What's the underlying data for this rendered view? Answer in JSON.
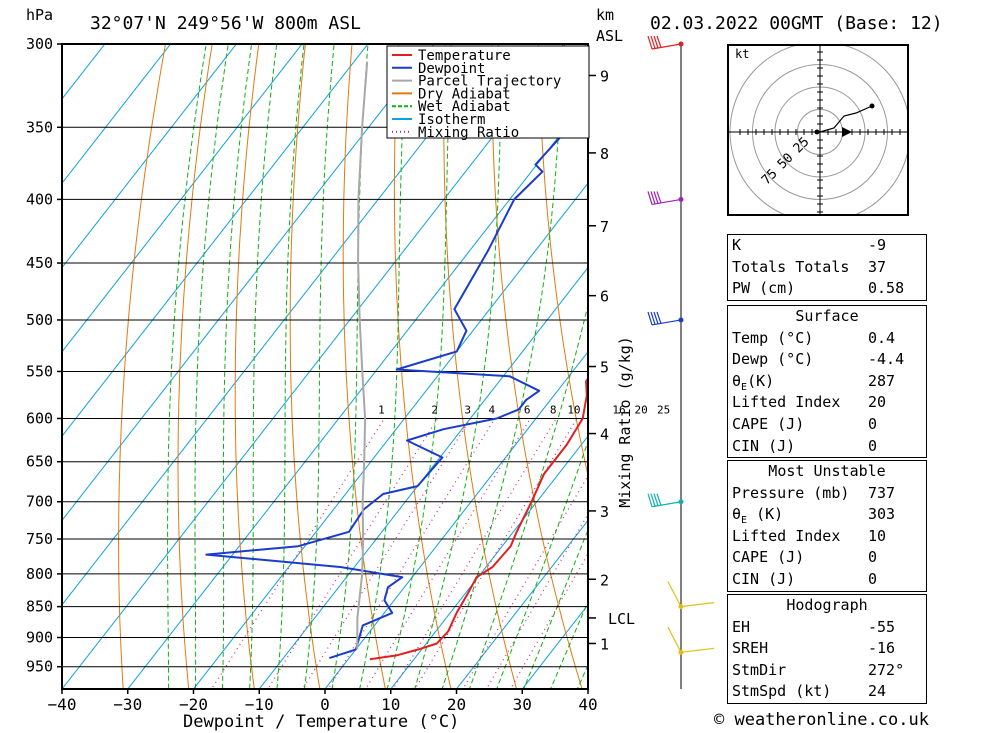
{
  "header": {
    "location": "32°07'N  249°56'W  800m  ASL",
    "datetime": "02.03.2022  00GMT  (Base: 12)",
    "hpa_label": "hPa",
    "km_label": "km",
    "asl_label": "ASL"
  },
  "axes": {
    "xlabel": "Dewpoint / Temperature (°C)",
    "mixing_ratio_label": "Mixing Ratio (g/kg)",
    "x_ticks": [
      "−40",
      "−30",
      "−20",
      "−10",
      "0",
      "10",
      "20",
      "30",
      "40"
    ],
    "x_tick_values": [
      -40,
      -30,
      -20,
      -10,
      0,
      10,
      20,
      30,
      40
    ],
    "pressure_levels": [
      300,
      350,
      400,
      450,
      500,
      550,
      600,
      650,
      700,
      750,
      800,
      850,
      900,
      950
    ],
    "pressure_labels": [
      "300",
      "350",
      "400",
      "450",
      "500",
      "550",
      "600",
      "650",
      "700",
      "750",
      "800",
      "850",
      "900",
      "950"
    ],
    "km_ticks": [
      {
        "label": "9",
        "pressure": 318
      },
      {
        "label": "8",
        "pressure": 367
      },
      {
        "label": "7",
        "pressure": 420
      },
      {
        "label": "6",
        "pressure": 478
      },
      {
        "label": "5",
        "pressure": 545
      },
      {
        "label": "4",
        "pressure": 617
      },
      {
        "label": "3",
        "pressure": 712
      },
      {
        "label": "2",
        "pressure": 808
      },
      {
        "label": "1",
        "pressure": 910
      }
    ],
    "lcl": {
      "label": "LCL",
      "pressure": 868
    },
    "mixing_ratio_values": [
      "1",
      "2",
      "3",
      "4",
      "6",
      "8",
      "10",
      "16",
      "20",
      "25"
    ],
    "mixing_ratio_numbers": [
      1,
      2,
      3,
      4,
      6,
      8,
      10,
      16,
      20,
      25
    ]
  },
  "legend": [
    {
      "label": "Temperature",
      "color": "#e02020",
      "style": "solid"
    },
    {
      "label": "Dewpoint",
      "color": "#1a3ccc",
      "style": "solid"
    },
    {
      "label": "Parcel Trajectory",
      "color": "#a8a8a8",
      "style": "solid"
    },
    {
      "label": "Dry Adiabat",
      "color": "#e07a10",
      "style": "solid"
    },
    {
      "label": "Wet Adiabat",
      "color": "#10b010",
      "style": "dashed"
    },
    {
      "label": "Isotherm",
      "color": "#10a0e0",
      "style": "solid"
    },
    {
      "label": "Mixing Ratio",
      "color": "#d0208a",
      "style": "dotted"
    }
  ],
  "chart_data": {
    "type": "line",
    "chart_kind": "skew-T log-p diagram",
    "xlim": [
      -40,
      40
    ],
    "plim": [
      300,
      990
    ],
    "series": [
      {
        "name": "Temperature",
        "color": "#e02020",
        "points": [
          [
            937,
            3.3
          ],
          [
            930,
            7
          ],
          [
            920,
            9.5
          ],
          [
            910,
            11.6
          ],
          [
            890,
            11.9
          ],
          [
            860,
            11
          ],
          [
            830,
            10.4
          ],
          [
            805,
            9.8
          ],
          [
            790,
            11
          ],
          [
            760,
            11.3
          ],
          [
            740,
            10.5
          ],
          [
            700,
            9.2
          ],
          [
            665,
            7.8
          ],
          [
            630,
            7.8
          ],
          [
            600,
            7.1
          ],
          [
            575,
            5
          ],
          [
            560,
            3.2
          ],
          [
            520,
            2.8
          ],
          [
            500,
            1
          ],
          [
            470,
            -2
          ],
          [
            440,
            -5.3
          ],
          [
            410,
            -9
          ],
          [
            390,
            -10.5
          ],
          [
            375,
            -10.2
          ],
          [
            350,
            -13
          ],
          [
            320,
            -14.5
          ],
          [
            300,
            -16
          ]
        ]
      },
      {
        "name": "Dewpoint",
        "color": "#1a3ccc",
        "points": [
          [
            935,
            -3
          ],
          [
            920,
            0
          ],
          [
            880,
            -1.8
          ],
          [
            860,
            1.2
          ],
          [
            840,
            -1.5
          ],
          [
            820,
            -2.5
          ],
          [
            805,
            -1.5
          ],
          [
            790,
            -12
          ],
          [
            772,
            -34
          ],
          [
            760,
            -21
          ],
          [
            740,
            -15
          ],
          [
            710,
            -15.4
          ],
          [
            690,
            -14.3
          ],
          [
            680,
            -10
          ],
          [
            645,
            -9.6
          ],
          [
            625,
            -17
          ],
          [
            612,
            -12.8
          ],
          [
            600,
            -6
          ],
          [
            590,
            -3.7
          ],
          [
            580,
            -3.7
          ],
          [
            570,
            -2.8
          ],
          [
            555,
            -9
          ],
          [
            548,
            -27
          ],
          [
            530,
            -20
          ],
          [
            510,
            -21
          ],
          [
            490,
            -25.4
          ],
          [
            440,
            -27.2
          ],
          [
            400,
            -29.3
          ],
          [
            380,
            -28.3
          ],
          [
            375,
            -30.2
          ],
          [
            350,
            -29.5
          ],
          [
            320,
            -30
          ],
          [
            300,
            -30
          ]
        ]
      },
      {
        "name": "Parcel Trajectory",
        "color": "#a8a8a8",
        "points": [
          [
            920,
            0.2
          ],
          [
            868,
            -3.5
          ],
          [
            800,
            -8
          ],
          [
            750,
            -12
          ],
          [
            700,
            -16.5
          ],
          [
            650,
            -21
          ],
          [
            600,
            -26
          ],
          [
            550,
            -32
          ],
          [
            500,
            -38.5
          ],
          [
            450,
            -45.5
          ],
          [
            400,
            -53
          ],
          [
            350,
            -61
          ],
          [
            310,
            -68
          ]
        ]
      }
    ],
    "wind_barbs": [
      {
        "pressure": 300,
        "color": "#e02020"
      },
      {
        "pressure": 400,
        "color": "#a020c0"
      },
      {
        "pressure": 500,
        "color": "#1a3ccc"
      },
      {
        "pressure": 700,
        "color": "#10b0b0"
      },
      {
        "pressure": 850,
        "color": "#e0c010"
      },
      {
        "pressure": 925,
        "color": "#e0c010"
      }
    ]
  },
  "hodograph": {
    "unit_label": "kt",
    "ring_labels": [
      "25",
      "50",
      "75"
    ],
    "points": [
      [
        0,
        0
      ],
      [
        14,
        4
      ],
      [
        24,
        16
      ],
      [
        36,
        19
      ],
      [
        52,
        26
      ]
    ]
  },
  "indices": {
    "k": {
      "label": "K",
      "value": "-9"
    },
    "totals": {
      "label": "Totals Totals",
      "value": "37"
    },
    "pw": {
      "label": "PW (cm)",
      "value": "0.58"
    }
  },
  "surface": {
    "title": "Surface",
    "temp": {
      "label": "Temp (°C)",
      "value": "0.4"
    },
    "dewp": {
      "label": "Dewp (°C)",
      "value": "-4.4"
    },
    "theta_e": {
      "label": "θ",
      "sub": "E",
      "suffix": "(K)",
      "value": "287"
    },
    "li": {
      "label": "Lifted Index",
      "value": "20"
    },
    "cape": {
      "label": "CAPE (J)",
      "value": "0"
    },
    "cin": {
      "label": "CIN (J)",
      "value": "0"
    }
  },
  "most_unstable": {
    "title": "Most Unstable",
    "pressure": {
      "label": "Pressure (mb)",
      "value": "737"
    },
    "theta_e": {
      "label": "θ",
      "sub": "E",
      "suffix": " (K)",
      "value": "303"
    },
    "li": {
      "label": "Lifted Index",
      "value": "10"
    },
    "cape": {
      "label": "CAPE (J)",
      "value": "0"
    },
    "cin": {
      "label": "CIN (J)",
      "value": "0"
    }
  },
  "hodograph_stats": {
    "title": "Hodograph",
    "eh": {
      "label": "EH",
      "value": "-55"
    },
    "sreh": {
      "label": "SREH",
      "value": "-16"
    },
    "stmdir": {
      "label": "StmDir",
      "value": "272°"
    },
    "stmspd": {
      "label": "StmSpd (kt)",
      "value": "24"
    }
  },
  "footer": {
    "credit": "© weatheronline.co.uk"
  }
}
